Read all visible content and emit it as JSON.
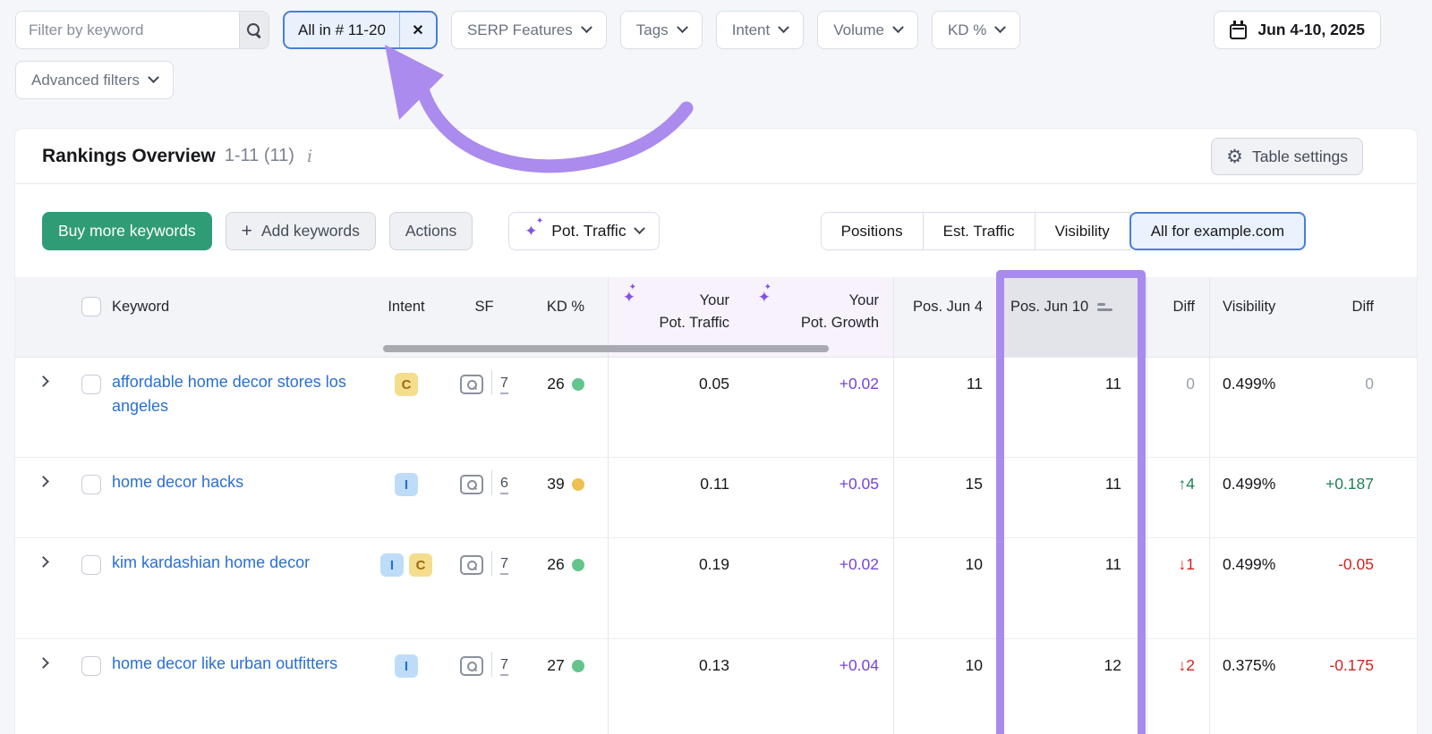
{
  "filters": {
    "keyword_placeholder": "Filter by keyword",
    "position_chip": {
      "label": "All in # 11-20",
      "close": "✕"
    },
    "dropdowns": [
      "SERP Features",
      "Tags",
      "Intent",
      "Volume",
      "KD %"
    ],
    "advanced_label": "Advanced filters",
    "date_range": "Jun 4-10, 2025"
  },
  "panel": {
    "title": "Rankings Overview",
    "range_count": "1-11 (11)",
    "table_settings_label": "Table settings",
    "buy_label": "Buy more keywords",
    "plus": "+",
    "add_label": "Add keywords",
    "actions_label": "Actions",
    "sparkle": "✦",
    "pot_traffic_label": "Pot. Traffic",
    "views": [
      "Positions",
      "Est. Traffic",
      "Visibility",
      "All for example.com"
    ],
    "active_view": "All for example.com"
  },
  "table": {
    "headers": {
      "keyword": "Keyword",
      "intent": "Intent",
      "sf": "SF",
      "kd": "KD %",
      "pot_traffic": [
        "Your",
        "Pot. Traffic"
      ],
      "pot_growth": [
        "Your",
        "Pot. Growth"
      ],
      "pos_prev": "Pos. Jun 4",
      "pos_curr": "Pos. Jun 10",
      "diff": "Diff",
      "visibility": "Visibility",
      "diff2": "Diff"
    },
    "rows": [
      {
        "keyword": "affordable home decor stores los angeles",
        "intents": [
          "C"
        ],
        "sf": "7",
        "kd": "26",
        "kd_level": "green",
        "pot_traffic": "0.05",
        "pot_growth": "+0.02",
        "pos_prev": "11",
        "pos_curr": "11",
        "diff": {
          "text": "0",
          "dir": "zero"
        },
        "visibility": "0.499%",
        "vis_diff": {
          "text": "0",
          "dir": "zero"
        }
      },
      {
        "keyword": "home decor hacks",
        "intents": [
          "I"
        ],
        "sf": "6",
        "kd": "39",
        "kd_level": "orange",
        "pot_traffic": "0.11",
        "pot_growth": "+0.05",
        "pos_prev": "15",
        "pos_curr": "11",
        "diff": {
          "text": "↑4",
          "dir": "up"
        },
        "visibility": "0.499%",
        "vis_diff": {
          "text": "+0.187",
          "dir": "up"
        }
      },
      {
        "keyword": "kim kardashian home decor",
        "intents": [
          "I",
          "C"
        ],
        "sf": "7",
        "kd": "26",
        "kd_level": "green",
        "pot_traffic": "0.19",
        "pot_growth": "+0.02",
        "pos_prev": "10",
        "pos_curr": "11",
        "diff": {
          "text": "↓1",
          "dir": "down"
        },
        "visibility": "0.499%",
        "vis_diff": {
          "text": "-0.05",
          "dir": "down"
        }
      },
      {
        "keyword": "home decor like urban outfitters",
        "intents": [
          "I"
        ],
        "sf": "7",
        "kd": "27",
        "kd_level": "green",
        "pot_traffic": "0.13",
        "pot_growth": "+0.04",
        "pos_prev": "10",
        "pos_curr": "12",
        "diff": {
          "text": "↓2",
          "dir": "down"
        },
        "visibility": "0.375%",
        "vis_diff": {
          "text": "-0.175",
          "dir": "down"
        }
      }
    ]
  },
  "colors": {
    "accent_purple": "#a98bee",
    "selected_blue": "#4a7fd6",
    "chip_bg": "#e9f1fc",
    "green_button": "#309c76",
    "kd_green": "#63c58c",
    "kd_orange": "#eec052",
    "diff_up": "#1e8158",
    "diff_down": "#d02421",
    "growth_purple": "#7742e0",
    "link_blue": "#2a6fd4"
  },
  "annotations": {
    "highlighted_column": "Pos. Jun 10",
    "arrow_points_to": "All in # 11-20"
  }
}
